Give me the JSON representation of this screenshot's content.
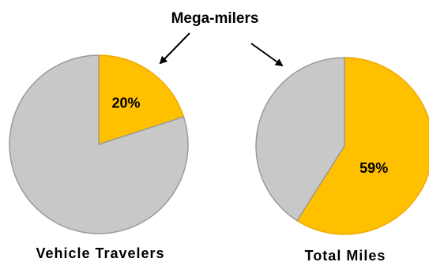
{
  "chart_data": [
    {
      "type": "pie",
      "title": "Vehicle Travelers",
      "slices": [
        {
          "label": "Mega-milers",
          "value": 20,
          "display": "20%",
          "color": "#FFC000"
        },
        {
          "label": "",
          "value": 80,
          "display": "",
          "color": "#C8C8C8"
        }
      ]
    },
    {
      "type": "pie",
      "title": "Total Miles",
      "slices": [
        {
          "label": "Mega-milers",
          "value": 59,
          "display": "59%",
          "color": "#FFC000"
        },
        {
          "label": "",
          "value": 41,
          "display": "",
          "color": "#C8C8C8"
        }
      ]
    }
  ],
  "annotation": {
    "text": "Mega-milers"
  },
  "colors": {
    "highlight": "#FFC000",
    "rest": "#C8C8C8"
  }
}
